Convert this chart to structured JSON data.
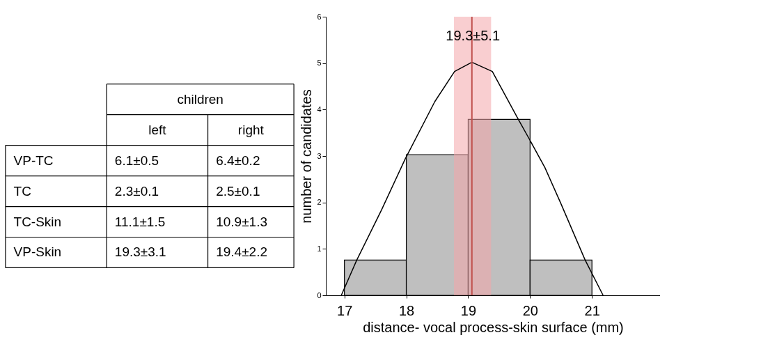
{
  "chart_data": [
    {
      "type": "other",
      "title": "children",
      "categories": [
        "left",
        "right"
      ],
      "y_categories": [
        "VP-TC",
        "TC",
        "TC-Skin",
        "VP-Skin"
      ],
      "cell_labels": [
        [
          "6.1±0.5",
          "6.4±0.2"
        ],
        [
          "2.3±0.1",
          "2.5±0.1"
        ],
        [
          "11.1±1.5",
          "10.9±1.3"
        ],
        [
          "19.3±3.1",
          "19.4±2.2"
        ]
      ]
    },
    {
      "type": "histogram",
      "xlabel": "distance- vocal process-skin surface (mm)",
      "ylabel": "number of candidates",
      "bins": [
        17,
        18,
        19,
        20,
        21
      ],
      "values": [
        0.76,
        3.03,
        3.79,
        0.76
      ],
      "color": "#bfbfbf",
      "series": [
        {
          "type": "line",
          "color": "#000000",
          "x": [
            16.95,
            17.2,
            17.6,
            17.98,
            18.46,
            18.78,
            19.06,
            19.39,
            19.81,
            19.99,
            20.24,
            20.49,
            20.89,
            21.18
          ],
          "values": [
            0,
            0.76,
            1.84,
            2.93,
            4.17,
            4.82,
            5.02,
            4.82,
            3.79,
            3.36,
            2.75,
            2.0,
            0.76,
            0
          ]
        }
      ],
      "ref_lines": [
        {
          "axis": "x",
          "value": 19.06,
          "color": "#c0504d"
        }
      ],
      "bands": [
        {
          "axis": "x",
          "from": 18.77,
          "to": 19.37,
          "color": "#f4a6aa"
        }
      ],
      "annotations": [
        "19.3±5.1"
      ],
      "xlim": [
        16.7,
        22.1
      ],
      "xticks": [
        17,
        18,
        19,
        20,
        21
      ],
      "ylim": [
        0,
        6
      ],
      "yticks": [
        0,
        1,
        2,
        3,
        4,
        5,
        6
      ]
    }
  ]
}
